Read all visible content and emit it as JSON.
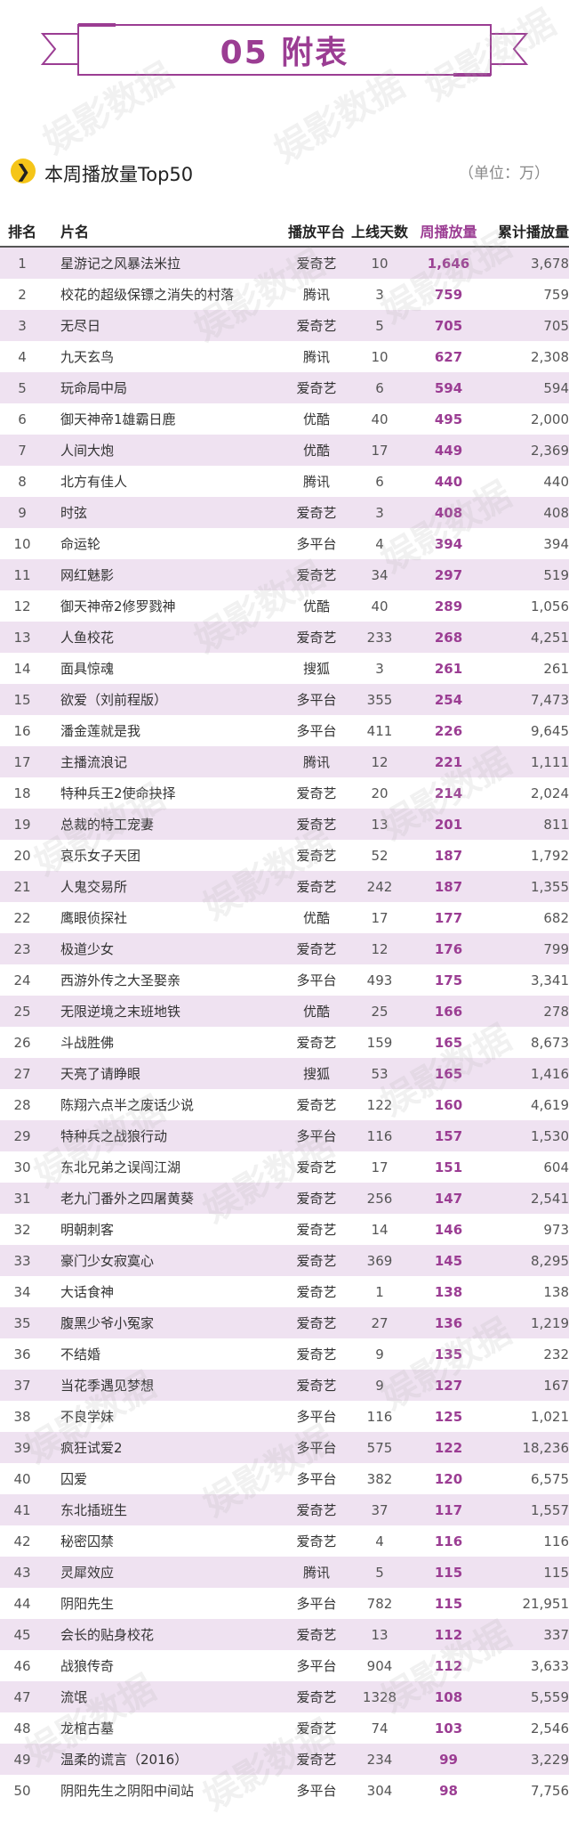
{
  "banner": {
    "title": "05 附表"
  },
  "section": {
    "title": "本周播放量Top50",
    "unit": "（单位：万）",
    "arrow_icon": "❯"
  },
  "watermark_text": "娱影数据",
  "table": {
    "headers": {
      "rank": "排名",
      "name": "片名",
      "platform": "播放平台",
      "days": "上线天数",
      "weekly": "周播放量",
      "total": "累计播放量"
    },
    "rows": [
      {
        "rank": "1",
        "name": "星游记之风暴法米拉",
        "platform": "爱奇艺",
        "days": "10",
        "weekly": "1,646",
        "total": "3,678"
      },
      {
        "rank": "2",
        "name": "校花的超级保镖之消失的村落",
        "platform": "腾讯",
        "days": "3",
        "weekly": "759",
        "total": "759"
      },
      {
        "rank": "3",
        "name": "无尽日",
        "platform": "爱奇艺",
        "days": "5",
        "weekly": "705",
        "total": "705"
      },
      {
        "rank": "4",
        "name": "九天玄鸟",
        "platform": "腾讯",
        "days": "10",
        "weekly": "627",
        "total": "2,308"
      },
      {
        "rank": "5",
        "name": "玩命局中局",
        "platform": "爱奇艺",
        "days": "6",
        "weekly": "594",
        "total": "594"
      },
      {
        "rank": "6",
        "name": "御天神帝1雄霸日鹿",
        "platform": "优酷",
        "days": "40",
        "weekly": "495",
        "total": "2,000"
      },
      {
        "rank": "7",
        "name": "人间大炮",
        "platform": "优酷",
        "days": "17",
        "weekly": "449",
        "total": "2,369"
      },
      {
        "rank": "8",
        "name": "北方有佳人",
        "platform": "腾讯",
        "days": "6",
        "weekly": "440",
        "total": "440"
      },
      {
        "rank": "9",
        "name": "时弦",
        "platform": "爱奇艺",
        "days": "3",
        "weekly": "408",
        "total": "408"
      },
      {
        "rank": "10",
        "name": "命运轮",
        "platform": "多平台",
        "days": "4",
        "weekly": "394",
        "total": "394"
      },
      {
        "rank": "11",
        "name": "网红魅影",
        "platform": "爱奇艺",
        "days": "34",
        "weekly": "297",
        "total": "519"
      },
      {
        "rank": "12",
        "name": "御天神帝2修罗戮神",
        "platform": "优酷",
        "days": "40",
        "weekly": "289",
        "total": "1,056"
      },
      {
        "rank": "13",
        "name": "人鱼校花",
        "platform": "爱奇艺",
        "days": "233",
        "weekly": "268",
        "total": "4,251"
      },
      {
        "rank": "14",
        "name": "面具惊魂",
        "platform": "搜狐",
        "days": "3",
        "weekly": "261",
        "total": "261"
      },
      {
        "rank": "15",
        "name": "欲爱（刘前程版）",
        "platform": "多平台",
        "days": "355",
        "weekly": "254",
        "total": "7,473"
      },
      {
        "rank": "16",
        "name": "潘金莲就是我",
        "platform": "多平台",
        "days": "411",
        "weekly": "226",
        "total": "9,645"
      },
      {
        "rank": "17",
        "name": "主播流浪记",
        "platform": "腾讯",
        "days": "12",
        "weekly": "221",
        "total": "1,111"
      },
      {
        "rank": "18",
        "name": "特种兵王2使命抉择",
        "platform": "爱奇艺",
        "days": "20",
        "weekly": "214",
        "total": "2,024"
      },
      {
        "rank": "19",
        "name": "总裁的特工宠妻",
        "platform": "爱奇艺",
        "days": "13",
        "weekly": "201",
        "total": "811"
      },
      {
        "rank": "20",
        "name": "哀乐女子天团",
        "platform": "爱奇艺",
        "days": "52",
        "weekly": "187",
        "total": "1,792"
      },
      {
        "rank": "21",
        "name": "人鬼交易所",
        "platform": "爱奇艺",
        "days": "242",
        "weekly": "187",
        "total": "1,355"
      },
      {
        "rank": "22",
        "name": "鹰眼侦探社",
        "platform": "优酷",
        "days": "17",
        "weekly": "177",
        "total": "682"
      },
      {
        "rank": "23",
        "name": "极道少女",
        "platform": "爱奇艺",
        "days": "12",
        "weekly": "176",
        "total": "799"
      },
      {
        "rank": "24",
        "name": "西游外传之大圣娶亲",
        "platform": "多平台",
        "days": "493",
        "weekly": "175",
        "total": "3,341"
      },
      {
        "rank": "25",
        "name": "无限逆境之末班地铁",
        "platform": "优酷",
        "days": "25",
        "weekly": "166",
        "total": "278"
      },
      {
        "rank": "26",
        "name": "斗战胜佛",
        "platform": "爱奇艺",
        "days": "159",
        "weekly": "165",
        "total": "8,673"
      },
      {
        "rank": "27",
        "name": "天亮了请睁眼",
        "platform": "搜狐",
        "days": "53",
        "weekly": "165",
        "total": "1,416"
      },
      {
        "rank": "28",
        "name": "陈翔六点半之废话少说",
        "platform": "爱奇艺",
        "days": "122",
        "weekly": "160",
        "total": "4,619"
      },
      {
        "rank": "29",
        "name": "特种兵之战狼行动",
        "platform": "多平台",
        "days": "116",
        "weekly": "157",
        "total": "1,530"
      },
      {
        "rank": "30",
        "name": "东北兄弟之误闯江湖",
        "platform": "爱奇艺",
        "days": "17",
        "weekly": "151",
        "total": "604"
      },
      {
        "rank": "31",
        "name": "老九门番外之四屠黄葵",
        "platform": "爱奇艺",
        "days": "256",
        "weekly": "147",
        "total": "2,541"
      },
      {
        "rank": "32",
        "name": "明朝刺客",
        "platform": "爱奇艺",
        "days": "14",
        "weekly": "146",
        "total": "973"
      },
      {
        "rank": "33",
        "name": "豪门少女寂寞心",
        "platform": "爱奇艺",
        "days": "369",
        "weekly": "145",
        "total": "8,295"
      },
      {
        "rank": "34",
        "name": "大话食神",
        "platform": "爱奇艺",
        "days": "1",
        "weekly": "138",
        "total": "138"
      },
      {
        "rank": "35",
        "name": "腹黑少爷小冤家",
        "platform": "爱奇艺",
        "days": "27",
        "weekly": "136",
        "total": "1,219"
      },
      {
        "rank": "36",
        "name": "不结婚",
        "platform": "爱奇艺",
        "days": "9",
        "weekly": "135",
        "total": "232"
      },
      {
        "rank": "37",
        "name": "当花季遇见梦想",
        "platform": "爱奇艺",
        "days": "9",
        "weekly": "127",
        "total": "167"
      },
      {
        "rank": "38",
        "name": "不良学妹",
        "platform": "多平台",
        "days": "116",
        "weekly": "125",
        "total": "1,021"
      },
      {
        "rank": "39",
        "name": "疯狂试爱2",
        "platform": "多平台",
        "days": "575",
        "weekly": "122",
        "total": "18,236"
      },
      {
        "rank": "40",
        "name": "囚爱",
        "platform": "多平台",
        "days": "382",
        "weekly": "120",
        "total": "6,575"
      },
      {
        "rank": "41",
        "name": "东北插班生",
        "platform": "爱奇艺",
        "days": "37",
        "weekly": "117",
        "total": "1,557"
      },
      {
        "rank": "42",
        "name": "秘密囚禁",
        "platform": "爱奇艺",
        "days": "4",
        "weekly": "116",
        "total": "116"
      },
      {
        "rank": "43",
        "name": "灵犀效应",
        "platform": "腾讯",
        "days": "5",
        "weekly": "115",
        "total": "115"
      },
      {
        "rank": "44",
        "name": "阴阳先生",
        "platform": "多平台",
        "days": "782",
        "weekly": "115",
        "total": "21,951"
      },
      {
        "rank": "45",
        "name": "会长的贴身校花",
        "platform": "爱奇艺",
        "days": "13",
        "weekly": "112",
        "total": "337"
      },
      {
        "rank": "46",
        "name": "战狼传奇",
        "platform": "多平台",
        "days": "904",
        "weekly": "112",
        "total": "3,633"
      },
      {
        "rank": "47",
        "name": "流氓",
        "platform": "爱奇艺",
        "days": "1328",
        "weekly": "108",
        "total": "5,559"
      },
      {
        "rank": "48",
        "name": "龙棺古墓",
        "platform": "爱奇艺",
        "days": "74",
        "weekly": "103",
        "total": "2,546"
      },
      {
        "rank": "49",
        "name": "温柔的谎言（2016）",
        "platform": "爱奇艺",
        "days": "234",
        "weekly": "99",
        "total": "3,229"
      },
      {
        "rank": "50",
        "name": "阴阳先生之阴阳中间站",
        "platform": "多平台",
        "days": "304",
        "weekly": "98",
        "total": "7,756"
      }
    ]
  }
}
